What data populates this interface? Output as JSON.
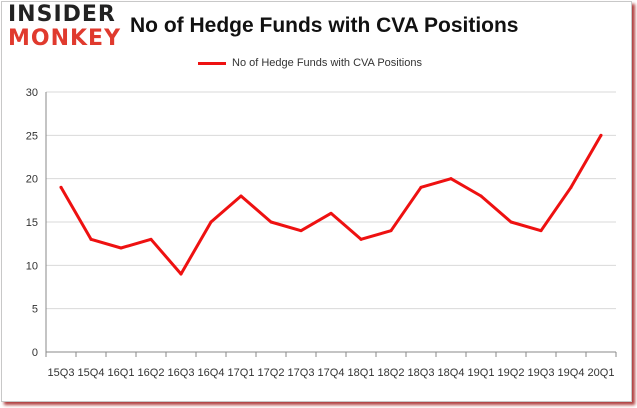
{
  "logo": {
    "top": "INSIDER",
    "bottom": "MONKEY"
  },
  "colors": {
    "series": "#ee1111",
    "grid": "#d9d9d9",
    "axis": "#888888",
    "logo_accent": "#e03a2e"
  },
  "chart_data": {
    "type": "line",
    "title": "No of Hedge Funds with CVA Positions",
    "xlabel": "",
    "ylabel": "",
    "categories": [
      "15Q3",
      "15Q4",
      "16Q1",
      "16Q2",
      "16Q3",
      "16Q4",
      "17Q1",
      "17Q2",
      "17Q3",
      "17Q4",
      "18Q1",
      "18Q2",
      "18Q3",
      "18Q4",
      "19Q1",
      "19Q2",
      "19Q3",
      "19Q4",
      "20Q1"
    ],
    "series": [
      {
        "name": "No of Hedge Funds with CVA Positions",
        "values": [
          19,
          13,
          12,
          13,
          9,
          15,
          18,
          15,
          14,
          16,
          13,
          14,
          19,
          20,
          18,
          15,
          14,
          19,
          25
        ]
      }
    ],
    "ylim": [
      0,
      30
    ],
    "yticks": [
      0,
      5,
      10,
      15,
      20,
      25,
      30
    ],
    "grid": true,
    "legend": "top-center"
  }
}
